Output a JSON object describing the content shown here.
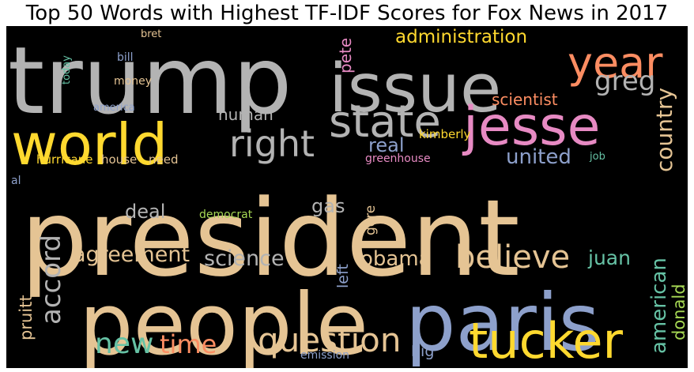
{
  "chart_data": {
    "type": "wordcloud",
    "title": "Top 50 Words with Highest TF-IDF Scores for Fox News in 2017",
    "background": "#000000",
    "palette": {
      "tan": "#e5c494",
      "gray": "#b3b3b3",
      "yellow": "#ffd92f",
      "blue": "#8da0cb",
      "pink": "#e78ac3",
      "orange": "#fc8d62",
      "green": "#66c2a5",
      "lime": "#a6d854"
    },
    "words": [
      {
        "text": "president",
        "color": "tan"
      },
      {
        "text": "trump",
        "color": "gray"
      },
      {
        "text": "people",
        "color": "tan"
      },
      {
        "text": "paris",
        "color": "blue"
      },
      {
        "text": "issue",
        "color": "gray"
      },
      {
        "text": "world",
        "color": "yellow"
      },
      {
        "text": "jesse",
        "color": "pink"
      },
      {
        "text": "tucker",
        "color": "yellow"
      },
      {
        "text": "state",
        "color": "gray"
      },
      {
        "text": "year",
        "color": "orange"
      },
      {
        "text": "right",
        "color": "gray"
      },
      {
        "text": "question",
        "color": "tan"
      },
      {
        "text": "believe",
        "color": "tan"
      },
      {
        "text": "new",
        "color": "green"
      },
      {
        "text": "time",
        "color": "orange"
      },
      {
        "text": "accord",
        "color": "gray"
      },
      {
        "text": "greg",
        "color": "gray"
      },
      {
        "text": "country",
        "color": "tan"
      },
      {
        "text": "american",
        "color": "green"
      },
      {
        "text": "agreement",
        "color": "tan"
      },
      {
        "text": "science",
        "color": "gray"
      },
      {
        "text": "obama",
        "color": "tan"
      },
      {
        "text": "united",
        "color": "blue"
      },
      {
        "text": "administration",
        "color": "yellow"
      },
      {
        "text": "real",
        "color": "blue"
      },
      {
        "text": "juan",
        "color": "green"
      },
      {
        "text": "deal",
        "color": "gray"
      },
      {
        "text": "gas",
        "color": "gray"
      },
      {
        "text": "donald",
        "color": "lime"
      },
      {
        "text": "human",
        "color": "gray"
      },
      {
        "text": "scientist",
        "color": "orange"
      },
      {
        "text": "pruitt",
        "color": "tan"
      },
      {
        "text": "left",
        "color": "blue"
      },
      {
        "text": "pete",
        "color": "pink"
      },
      {
        "text": "big",
        "color": "blue"
      },
      {
        "text": "gore",
        "color": "tan"
      },
      {
        "text": "kimberly",
        "color": "yellow"
      },
      {
        "text": "hurricane",
        "color": "yellow"
      },
      {
        "text": "house",
        "color": "tan"
      },
      {
        "text": "need",
        "color": "tan"
      },
      {
        "text": "democrat",
        "color": "lime"
      },
      {
        "text": "money",
        "color": "tan"
      },
      {
        "text": "greenhouse",
        "color": "pink"
      },
      {
        "text": "bill",
        "color": "blue"
      },
      {
        "text": "america",
        "color": "blue"
      },
      {
        "text": "bret",
        "color": "tan"
      },
      {
        "text": "today",
        "color": "green"
      },
      {
        "text": "job",
        "color": "green"
      },
      {
        "text": "emission",
        "color": "blue"
      },
      {
        "text": "al",
        "color": "blue"
      }
    ]
  }
}
